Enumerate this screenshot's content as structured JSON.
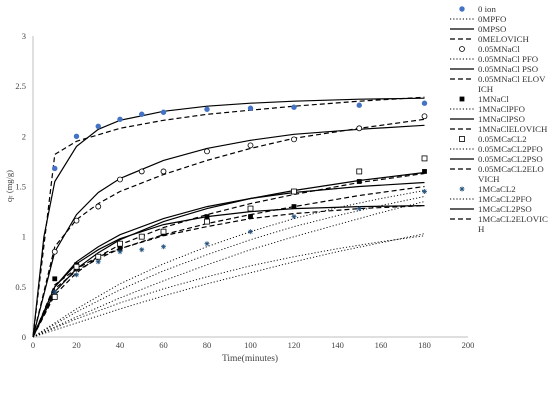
{
  "chart_data": {
    "type": "scatter",
    "title": "",
    "xlabel": "Time(minutes)",
    "ylabel": "qₜ (mg/g)",
    "xlim": [
      0,
      200
    ],
    "ylim": [
      0,
      3
    ],
    "x_ticks": [
      "0",
      "20",
      "40",
      "60",
      "80",
      "100",
      "120",
      "140",
      "160",
      "180",
      "200"
    ],
    "y_ticks": [
      "0",
      "0.5",
      "1",
      "1.5",
      "2",
      "2.5",
      "3"
    ],
    "grid": false,
    "legend_position": "right",
    "point_series": [
      {
        "name": "0 ion",
        "marker": "circle-filled",
        "color": "#4472c4",
        "x": [
          10,
          20,
          30,
          40,
          50,
          60,
          80,
          100,
          120,
          150,
          180
        ],
        "y": [
          1.68,
          2.0,
          2.1,
          2.17,
          2.22,
          2.24,
          2.27,
          2.28,
          2.29,
          2.31,
          2.33
        ]
      },
      {
        "name": "0.05MNaCl",
        "marker": "circle-open",
        "color": "#000000",
        "x": [
          10,
          20,
          30,
          40,
          50,
          60,
          80,
          100,
          120,
          150,
          180
        ],
        "y": [
          0.85,
          1.16,
          1.3,
          1.57,
          1.65,
          1.65,
          1.85,
          1.91,
          1.97,
          2.08,
          2.2
        ]
      },
      {
        "name": "1MNaCl",
        "marker": "square-filled",
        "color": "#000000",
        "x": [
          10,
          20,
          30,
          40,
          50,
          60,
          80,
          100,
          120,
          150,
          180
        ],
        "y": [
          0.58,
          0.72,
          0.8,
          0.88,
          1.0,
          1.03,
          1.2,
          1.2,
          1.3,
          1.55,
          1.65
        ]
      },
      {
        "name": "0.05MCaCL2",
        "marker": "square-open",
        "color": "#000000",
        "x": [
          10,
          20,
          30,
          40,
          50,
          60,
          80,
          100,
          120,
          150,
          180
        ],
        "y": [
          0.4,
          0.7,
          0.8,
          0.93,
          1.0,
          1.05,
          1.15,
          1.28,
          1.45,
          1.65,
          1.78
        ]
      },
      {
        "name": "1MCaCL2",
        "marker": "asterisk",
        "color": "#1f4e79",
        "x": [
          10,
          20,
          30,
          40,
          50,
          60,
          80,
          100,
          120,
          150,
          180
        ],
        "y": [
          0.45,
          0.62,
          0.75,
          0.85,
          0.87,
          0.9,
          0.93,
          1.05,
          1.2,
          1.28,
          1.45
        ]
      }
    ],
    "line_series": [
      {
        "name": "0MPFO",
        "style": "dotted",
        "x": [
          0,
          20,
          40,
          60,
          80,
          100,
          120,
          140,
          160,
          180
        ],
        "y": [
          0,
          0.18,
          0.34,
          0.48,
          0.6,
          0.71,
          0.8,
          0.88,
          0.95,
          1.01
        ]
      },
      {
        "name": "0MPSO",
        "style": "solid",
        "x": [
          0,
          5,
          10,
          20,
          30,
          40,
          60,
          80,
          100,
          120,
          150,
          180
        ],
        "y": [
          0,
          1.0,
          1.55,
          1.9,
          2.07,
          2.16,
          2.25,
          2.3,
          2.33,
          2.35,
          2.37,
          2.38
        ]
      },
      {
        "name": "0MELOVICH",
        "style": "dashed",
        "x": [
          0,
          10,
          20,
          40,
          60,
          80,
          100,
          120,
          150,
          180
        ],
        "y": [
          0,
          1.82,
          1.95,
          2.08,
          2.16,
          2.22,
          2.26,
          2.3,
          2.35,
          2.39
        ]
      },
      {
        "name": "0.05MNaCl PFO",
        "style": "dotted",
        "x": [
          0,
          20,
          40,
          60,
          80,
          100,
          120,
          140,
          160,
          180
        ],
        "y": [
          0,
          0.25,
          0.47,
          0.66,
          0.82,
          0.97,
          1.1,
          1.21,
          1.31,
          1.4
        ]
      },
      {
        "name": "0.05MNaCl PSO",
        "style": "solid",
        "x": [
          0,
          10,
          20,
          30,
          40,
          60,
          80,
          100,
          120,
          150,
          180
        ],
        "y": [
          0,
          0.85,
          1.22,
          1.44,
          1.58,
          1.76,
          1.88,
          1.96,
          2.02,
          2.07,
          2.11
        ]
      },
      {
        "name": "0.05MNaCl ELOVICH",
        "style": "dashed",
        "x": [
          0,
          10,
          20,
          30,
          40,
          60,
          80,
          100,
          120,
          150,
          180
        ],
        "y": [
          0,
          0.9,
          1.17,
          1.33,
          1.45,
          1.62,
          1.76,
          1.88,
          1.98,
          2.08,
          2.17
        ]
      },
      {
        "name": "1MNaClPFO",
        "style": "dotted",
        "x": [
          0,
          20,
          40,
          60,
          80,
          100,
          120,
          140,
          160,
          180
        ],
        "y": [
          0,
          0.2,
          0.39,
          0.56,
          0.72,
          0.87,
          1.0,
          1.12,
          1.24,
          1.35
        ]
      },
      {
        "name": "1MNaClPSO",
        "style": "solid",
        "x": [
          0,
          10,
          20,
          30,
          40,
          60,
          80,
          100,
          120,
          150,
          180
        ],
        "y": [
          0,
          0.5,
          0.73,
          0.87,
          0.98,
          1.12,
          1.2,
          1.25,
          1.28,
          1.3,
          1.31
        ]
      },
      {
        "name": "1MNaClELOVICH",
        "style": "dashed",
        "x": [
          0,
          10,
          20,
          30,
          40,
          60,
          80,
          100,
          120,
          150,
          180
        ],
        "y": [
          0,
          0.52,
          0.68,
          0.8,
          0.88,
          1.01,
          1.1,
          1.18,
          1.23,
          1.28,
          1.31
        ]
      },
      {
        "name": "0.05MCaCL2PFO",
        "style": "dotted",
        "x": [
          0,
          20,
          40,
          60,
          80,
          100,
          120,
          140,
          160,
          180
        ],
        "y": [
          0,
          0.28,
          0.53,
          0.73,
          0.9,
          1.05,
          1.18,
          1.29,
          1.38,
          1.46
        ]
      },
      {
        "name": "0.05MCaCL2PSO",
        "style": "solid",
        "x": [
          0,
          10,
          20,
          30,
          40,
          60,
          80,
          100,
          120,
          150,
          180
        ],
        "y": [
          0,
          0.45,
          0.68,
          0.84,
          0.97,
          1.15,
          1.28,
          1.38,
          1.46,
          1.56,
          1.64
        ]
      },
      {
        "name": "0.05MCaCL2ELOVICH",
        "style": "dashed",
        "x": [
          0,
          10,
          20,
          30,
          40,
          60,
          80,
          100,
          120,
          150,
          180
        ],
        "y": [
          0,
          0.42,
          0.64,
          0.8,
          0.92,
          1.09,
          1.22,
          1.33,
          1.42,
          1.54,
          1.63
        ]
      },
      {
        "name": "1MCaCL2PFO",
        "style": "dotted",
        "x": [
          0,
          20,
          40,
          60,
          80,
          100,
          120,
          140,
          160,
          180
        ],
        "y": [
          0,
          0.14,
          0.28,
          0.41,
          0.53,
          0.64,
          0.75,
          0.85,
          0.94,
          1.03
        ]
      },
      {
        "name": "1MCaCL2PSO",
        "style": "solid",
        "x": [
          0,
          10,
          20,
          30,
          40,
          60,
          80,
          100,
          120,
          150,
          180
        ],
        "y": [
          0,
          0.5,
          0.75,
          0.9,
          1.02,
          1.18,
          1.3,
          1.38,
          1.44,
          1.5,
          1.54
        ]
      },
      {
        "name": "1MCaCL2ELOVICH",
        "style": "dashed",
        "x": [
          0,
          10,
          20,
          30,
          40,
          60,
          80,
          100,
          120,
          150,
          180
        ],
        "y": [
          0,
          0.48,
          0.66,
          0.78,
          0.88,
          1.02,
          1.13,
          1.22,
          1.3,
          1.41,
          1.5
        ]
      }
    ],
    "legend": [
      {
        "label": "0 ion",
        "sym": "circle-filled"
      },
      {
        "label": "0MPFO",
        "sym": "dotted"
      },
      {
        "label": "0MPSO",
        "sym": "solid"
      },
      {
        "label": "0MELOVICH",
        "sym": "dashed"
      },
      {
        "label": "0.05MNaCl",
        "sym": "circle-open"
      },
      {
        "label": "0.05MNaCl PFO",
        "sym": "dotted"
      },
      {
        "label": "0.05MNaCl PSO",
        "sym": "solid"
      },
      {
        "label": "0.05MNaCl ELOVICH",
        "sym": "dashed"
      },
      {
        "label": "1MNaCl",
        "sym": "square-filled"
      },
      {
        "label": "1MNaClPFO",
        "sym": "dotted"
      },
      {
        "label": "1MNaClPSO",
        "sym": "solid"
      },
      {
        "label": "1MNaClELOVICH",
        "sym": "dashed"
      },
      {
        "label": "0.05MCaCL2",
        "sym": "square-open"
      },
      {
        "label": "0.05MCaCL2PFO",
        "sym": "dotted"
      },
      {
        "label": "0.05MCaCL2PSO",
        "sym": "solid"
      },
      {
        "label": "0.05MCaCL2ELOVICH",
        "sym": "dashed"
      },
      {
        "label": "1MCaCL2",
        "sym": "asterisk"
      },
      {
        "label": "1MCaCL2PFO",
        "sym": "dotted"
      },
      {
        "label": "1MCaCL2PSO",
        "sym": "solid"
      },
      {
        "label": "1MCaCL2ELOVICH",
        "sym": "dashed"
      }
    ]
  }
}
